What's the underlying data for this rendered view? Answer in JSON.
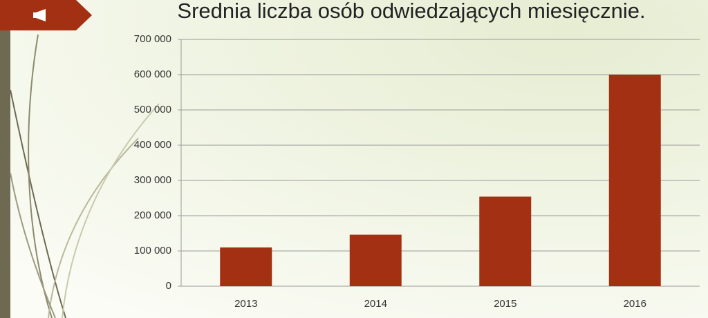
{
  "chart_data": {
    "type": "bar",
    "title": "Srednia liczba osób odwiedzających miesięcznie.",
    "categories": [
      "2013",
      "2014",
      "2015",
      "2016"
    ],
    "values": [
      110000,
      146000,
      254000,
      600000
    ],
    "color": "#a33012",
    "ylim": [
      0,
      700000
    ],
    "yticks": [
      0,
      {
        "value": 100000,
        "label": "100 000"
      },
      {
        "value": 200000,
        "label": "200 000"
      },
      {
        "value": 300000,
        "label": "300 000"
      },
      {
        "value": 400000,
        "label": "400 000"
      },
      {
        "value": 500000,
        "label": "500 000"
      },
      {
        "value": 600000,
        "label": "600 000"
      },
      {
        "value": 700000,
        "label": "700 000"
      }
    ],
    "grid": true
  }
}
